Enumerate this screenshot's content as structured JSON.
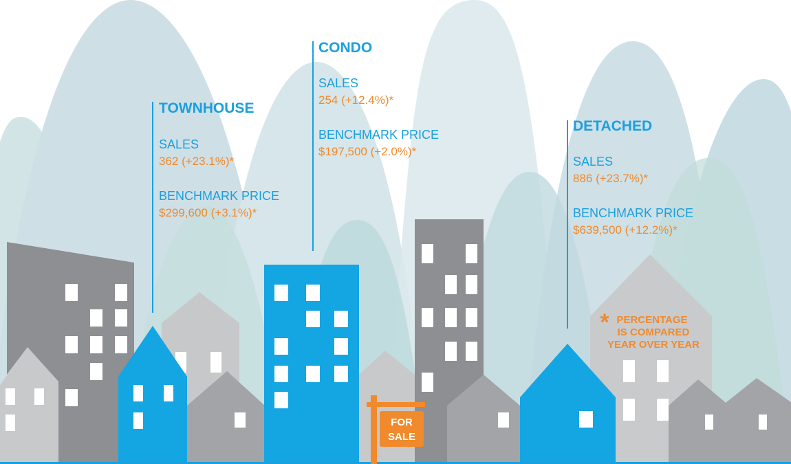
{
  "sections": [
    {
      "title": "TOWNHOUSE",
      "sales_label": "SALES",
      "sales_value": "362 (+23.1%)*",
      "price_label": "BENCHMARK PRICE",
      "price_value": "$299,600 (+3.1%)*"
    },
    {
      "title": "CONDO",
      "sales_label": "SALES",
      "sales_value": "254 (+12.4%)*",
      "price_label": "BENCHMARK PRICE",
      "price_value": "$197,500 (+2.0%)*"
    },
    {
      "title": "DETACHED",
      "sales_label": "SALES",
      "sales_value": "886 (+23.7%)*",
      "price_label": "BENCHMARK PRICE",
      "price_value": "$639,500 (+12.2%)*"
    }
  ],
  "footnote": {
    "marker": "*",
    "lines": [
      "PERCENTAGE",
      "IS COMPARED",
      "YEAR OVER YEAR"
    ]
  },
  "sign": {
    "lines": [
      "FOR",
      "SALE"
    ]
  }
}
